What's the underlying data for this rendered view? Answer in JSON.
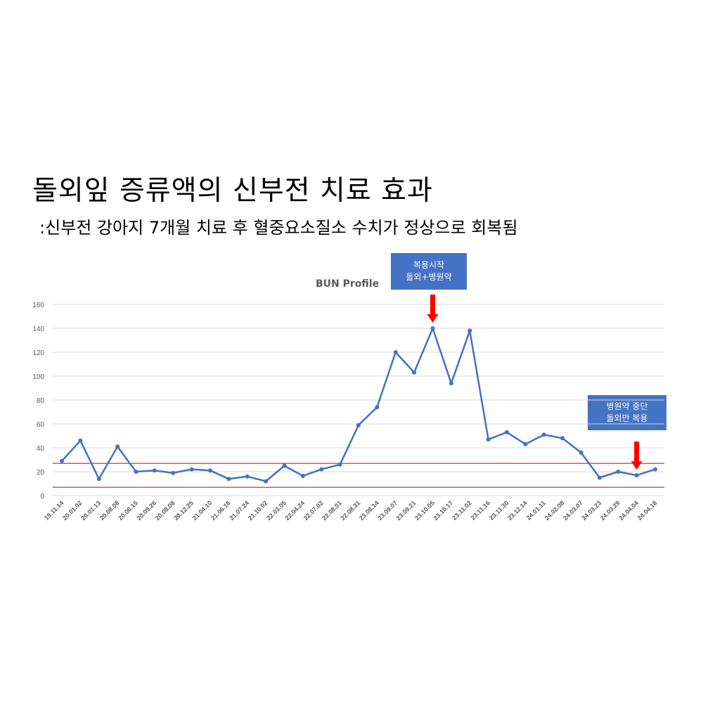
{
  "heading": {
    "title": "돌외잎 증류액의 신부전 치료 효과",
    "subtitle": ":신부전 강아지 7개월 치료 후 혈중요소질소 수치가 정상으로 회복됨"
  },
  "callouts": {
    "first": {
      "line1": "복용시작",
      "line2": "돌외+병원약"
    },
    "second": {
      "line1": "병원약 중단",
      "line2": "돌외만 복용"
    }
  },
  "colors": {
    "series": "#4472C4",
    "reference": "#C00000",
    "arrow": "#FF0000",
    "grid": "#D9D9D9"
  },
  "chart_data": {
    "type": "line",
    "title": "BUN Profile",
    "categories": [
      "19.11.14",
      "20.01.02",
      "20.01.13",
      "20.08.08",
      "20.08.15",
      "20.09.26",
      "20.08.08",
      "20.12.25",
      "21.04.10",
      "21.06.16",
      "21.07.24",
      "21.10.02",
      "22.03.05",
      "22.04.24",
      "22.07.02",
      "22.08.01",
      "22.08.31",
      "23.08.14",
      "23.09.07",
      "23.09.21",
      "23.10.05",
      "23.10.17",
      "23.11.02",
      "23.11.16",
      "23.11.30",
      "23.12.14",
      "24.01.11",
      "24.02.08",
      "24.03.07",
      "24.03.23",
      "24.03.29",
      "24.04.04",
      "24.04.18"
    ],
    "series": [
      {
        "values": [
          29,
          46,
          14,
          41,
          20,
          21,
          19,
          22,
          21,
          14,
          16,
          12,
          25,
          16.5,
          22,
          26,
          59,
          74,
          120,
          103,
          140,
          94,
          138,
          47,
          53,
          43,
          51,
          48,
          36,
          15,
          20,
          17,
          22
        ]
      }
    ],
    "reference_lines": [
      27,
      7
    ],
    "ylim": [
      0,
      160
    ],
    "yticks": [
      0,
      20,
      40,
      60,
      80,
      100,
      120,
      140,
      160
    ],
    "grid": true,
    "legend": "none",
    "annotations": [
      {
        "at_category": "23.10.05",
        "callout": "first"
      },
      {
        "at_category": "24.04.04",
        "callout": "second"
      }
    ]
  }
}
